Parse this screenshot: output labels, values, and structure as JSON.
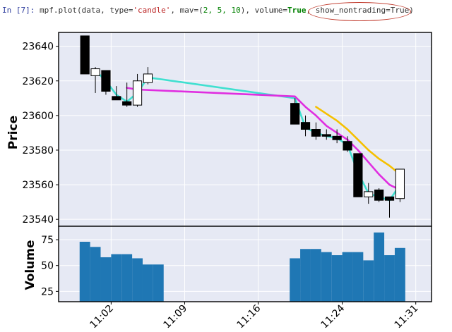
{
  "code_cell": {
    "prompt": "In [7]:",
    "code_prefix": " mpf.plot(data, type=",
    "code_type": "'candle'",
    "code_mid1": ", mav=(",
    "code_mav": "2, 5, 10",
    "code_mid2": "), volume=",
    "code_true1": "True",
    "code_sep": ", ",
    "highlight": "show_nontrading=True",
    "code_end": ")"
  },
  "chart_data": {
    "type": "candlestick",
    "ylabel": "Price",
    "volume_ylabel": "Volume",
    "x_time_ticks": [
      "11:02",
      "11:09",
      "11:16",
      "11:24",
      "11:31"
    ],
    "x_tick_minutes": [
      62,
      69,
      76,
      84,
      91
    ],
    "xlim_minutes": [
      57.0,
      92.5
    ],
    "price_ylim": [
      23536,
      23648
    ],
    "price_yticks": [
      23540,
      23560,
      23580,
      23600,
      23620,
      23640
    ],
    "volume_ylim": [
      15,
      88
    ],
    "volume_yticks": [
      25,
      50,
      75
    ],
    "candles": [
      {
        "t": 59.5,
        "open": 23646,
        "high": 23646,
        "low": 23624,
        "close": 23624
      },
      {
        "t": 60.5,
        "open": 23623,
        "high": 23628,
        "low": 23613,
        "close": 23627
      },
      {
        "t": 61.5,
        "open": 23626,
        "high": 23626,
        "low": 23612,
        "close": 23614
      },
      {
        "t": 62.5,
        "open": 23611,
        "high": 23617,
        "low": 23609,
        "close": 23609
      },
      {
        "t": 63.5,
        "open": 23608,
        "high": 23619,
        "low": 23605,
        "close": 23606
      },
      {
        "t": 64.5,
        "open": 23606,
        "high": 23624,
        "low": 23605,
        "close": 23620
      },
      {
        "t": 65.5,
        "open": 23619,
        "high": 23628,
        "low": 23618,
        "close": 23624
      },
      {
        "t": 79.5,
        "open": 23607,
        "high": 23610,
        "low": 23595,
        "close": 23595
      },
      {
        "t": 80.5,
        "open": 23596,
        "high": 23600,
        "low": 23588,
        "close": 23592
      },
      {
        "t": 81.5,
        "open": 23592,
        "high": 23596,
        "low": 23586,
        "close": 23588
      },
      {
        "t": 82.5,
        "open": 23589,
        "high": 23592,
        "low": 23586,
        "close": 23588
      },
      {
        "t": 83.5,
        "open": 23588,
        "high": 23592,
        "low": 23584,
        "close": 23586
      },
      {
        "t": 84.5,
        "open": 23585,
        "high": 23588,
        "low": 23579,
        "close": 23580
      },
      {
        "t": 85.5,
        "open": 23578,
        "high": 23578,
        "low": 23553,
        "close": 23553
      },
      {
        "t": 86.5,
        "open": 23553,
        "high": 23561,
        "low": 23549,
        "close": 23556
      },
      {
        "t": 87.5,
        "open": 23557,
        "high": 23558,
        "low": 23550,
        "close": 23551
      },
      {
        "t": 88.5,
        "open": 23553,
        "high": 23553,
        "low": 23541,
        "close": 23551
      },
      {
        "t": 89.5,
        "open": 23552,
        "high": 23569,
        "low": 23550,
        "close": 23569
      }
    ],
    "moving_averages": [
      {
        "period": 2,
        "color": "#40e0d0",
        "points": [
          [
            60.5,
            23626
          ],
          [
            61.5,
            23620
          ],
          [
            62.5,
            23612
          ],
          [
            63.5,
            23608
          ],
          [
            64.5,
            23613
          ],
          [
            65.5,
            23622
          ],
          [
            79.5,
            23610
          ],
          [
            80.5,
            23593
          ],
          [
            81.5,
            23590
          ],
          [
            82.5,
            23588
          ],
          [
            83.5,
            23587
          ],
          [
            84.5,
            23583
          ],
          [
            85.5,
            23567
          ],
          [
            86.5,
            23555
          ],
          [
            87.5,
            23553
          ],
          [
            88.5,
            23551
          ],
          [
            89.5,
            23560
          ]
        ]
      },
      {
        "period": 5,
        "color": "#e02ee0",
        "points": [
          [
            63.5,
            23616
          ],
          [
            64.5,
            23615
          ],
          [
            79.5,
            23611
          ],
          [
            80.5,
            23605
          ],
          [
            81.5,
            23600
          ],
          [
            82.5,
            23594
          ],
          [
            83.5,
            23590
          ],
          [
            84.5,
            23586
          ],
          [
            85.5,
            23580
          ],
          [
            86.5,
            23573
          ],
          [
            87.5,
            23566
          ],
          [
            88.5,
            23560
          ],
          [
            89.5,
            23557
          ]
        ]
      },
      {
        "period": 10,
        "color": "#f5c000",
        "points": [
          [
            81.5,
            23605
          ],
          [
            82.5,
            23601
          ],
          [
            83.5,
            23597
          ],
          [
            84.5,
            23592
          ],
          [
            85.5,
            23586
          ],
          [
            86.5,
            23580
          ],
          [
            87.5,
            23575
          ],
          [
            88.5,
            23571
          ],
          [
            89.5,
            23566
          ]
        ]
      }
    ],
    "volume": [
      {
        "t": 59.5,
        "v": 73
      },
      {
        "t": 60.5,
        "v": 68
      },
      {
        "t": 61.5,
        "v": 58
      },
      {
        "t": 62.5,
        "v": 61
      },
      {
        "t": 63.5,
        "v": 61
      },
      {
        "t": 64.5,
        "v": 57
      },
      {
        "t": 65.5,
        "v": 51
      },
      {
        "t": 66.5,
        "v": 51
      },
      {
        "t": 79.5,
        "v": 57
      },
      {
        "t": 80.5,
        "v": 66
      },
      {
        "t": 81.5,
        "v": 66
      },
      {
        "t": 82.5,
        "v": 63
      },
      {
        "t": 83.5,
        "v": 60
      },
      {
        "t": 84.5,
        "v": 63
      },
      {
        "t": 85.5,
        "v": 63
      },
      {
        "t": 86.5,
        "v": 55
      },
      {
        "t": 87.5,
        "v": 82
      },
      {
        "t": 88.5,
        "v": 60
      },
      {
        "t": 89.5,
        "v": 67
      }
    ],
    "volume_color": "#1f77b4",
    "up_color": "#ffffff",
    "down_color": "#000000",
    "grid": true,
    "background": "#e6e9f4"
  }
}
